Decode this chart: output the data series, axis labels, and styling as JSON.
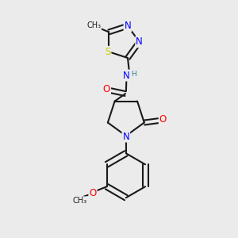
{
  "background_color": "#ebebeb",
  "bond_color": "#1a1a1a",
  "atom_colors": {
    "N": "#0000ff",
    "O": "#ff0000",
    "S": "#cccc00",
    "H": "#2f8080",
    "C": "#1a1a1a"
  },
  "font_size_atoms": 8.5,
  "font_size_small": 7.0,
  "fig_width": 3.0,
  "fig_height": 3.0
}
